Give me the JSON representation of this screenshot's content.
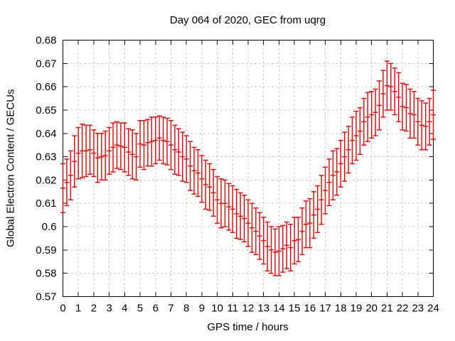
{
  "window": {
    "background": "#ffffff"
  },
  "chart_data": {
    "type": "scatter",
    "subtype": "yerrorbars",
    "title": "Day 064 of 2020, GEC from uqrg",
    "xlabel": "GPS time / hours",
    "ylabel": "Global Electron Content / GECUs",
    "xlim": [
      0,
      24
    ],
    "ylim": [
      0.57,
      0.68
    ],
    "grid": true,
    "legend_position": "none",
    "x_ticks": [
      0,
      1,
      2,
      3,
      4,
      5,
      6,
      7,
      8,
      9,
      10,
      11,
      12,
      13,
      14,
      15,
      16,
      17,
      18,
      19,
      20,
      21,
      22,
      23,
      24
    ],
    "x_tick_labels": [
      "0",
      "1",
      "2",
      "3",
      "4",
      "5",
      "6",
      "7",
      "8",
      "9",
      "10",
      "11",
      "12",
      "13",
      "14",
      "15",
      "16",
      "17",
      "18",
      "19",
      "20",
      "21",
      "22",
      "23",
      "24"
    ],
    "y_ticks": [
      0.57,
      0.58,
      0.59,
      0.6,
      0.61,
      0.62,
      0.63,
      0.64,
      0.65,
      0.66,
      0.67,
      0.68
    ],
    "y_tick_labels": [
      "0.57",
      "0.58",
      "0.59",
      "0.6",
      "0.61",
      "0.62",
      "0.63",
      "0.64",
      "0.65",
      "0.66",
      "0.67",
      "0.68"
    ],
    "series": [
      {
        "name": "GEC",
        "color": "#e60000",
        "marker": "plus-with-error-caps",
        "x": [
          0,
          0.25,
          0.5,
          0.75,
          1,
          1.25,
          1.5,
          1.75,
          2,
          2.25,
          2.5,
          2.75,
          3,
          3.25,
          3.5,
          3.75,
          4,
          4.25,
          4.5,
          4.75,
          5,
          5.25,
          5.5,
          5.75,
          6,
          6.25,
          6.5,
          6.75,
          7,
          7.25,
          7.5,
          7.75,
          8,
          8.25,
          8.5,
          8.75,
          9,
          9.25,
          9.5,
          9.75,
          10,
          10.25,
          10.5,
          10.75,
          11,
          11.25,
          11.5,
          11.75,
          12,
          12.25,
          12.5,
          12.75,
          13,
          13.25,
          13.5,
          13.75,
          14,
          14.25,
          14.5,
          14.75,
          15,
          15.25,
          15.5,
          15.75,
          16,
          16.25,
          16.5,
          16.75,
          17,
          17.25,
          17.5,
          17.75,
          18,
          18.25,
          18.5,
          18.75,
          19,
          19.25,
          19.5,
          19.75,
          20,
          20.25,
          20.5,
          20.75,
          21,
          21.25,
          21.5,
          21.75,
          22,
          22.25,
          22.5,
          22.75,
          23,
          23.25,
          23.5,
          23.75,
          24
        ],
        "y": [
          0.6165,
          0.619,
          0.622,
          0.628,
          0.6315,
          0.6325,
          0.6325,
          0.633,
          0.6315,
          0.6295,
          0.63,
          0.6305,
          0.6325,
          0.634,
          0.635,
          0.6345,
          0.634,
          0.632,
          0.631,
          0.63,
          0.6355,
          0.635,
          0.636,
          0.6365,
          0.637,
          0.638,
          0.637,
          0.6365,
          0.635,
          0.633,
          0.632,
          0.63,
          0.629,
          0.626,
          0.624,
          0.623,
          0.6205,
          0.618,
          0.617,
          0.6145,
          0.6115,
          0.61,
          0.61,
          0.6085,
          0.6075,
          0.6055,
          0.6045,
          0.6035,
          0.6015,
          0.5995,
          0.598,
          0.596,
          0.594,
          0.5915,
          0.59,
          0.589,
          0.5895,
          0.5905,
          0.592,
          0.591,
          0.594,
          0.5945,
          0.598,
          0.601,
          0.6015,
          0.605,
          0.6075,
          0.6115,
          0.6155,
          0.619,
          0.622,
          0.6235,
          0.627,
          0.63,
          0.633,
          0.637,
          0.639,
          0.641,
          0.645,
          0.647,
          0.648,
          0.649,
          0.652,
          0.657,
          0.6605,
          0.66,
          0.658,
          0.6555,
          0.6515,
          0.651,
          0.6485,
          0.648,
          0.645,
          0.6435,
          0.643,
          0.645,
          0.648
        ],
        "yerr": [
          0.0105,
          0.01,
          0.0105,
          0.011,
          0.011,
          0.0115,
          0.011,
          0.0105,
          0.01,
          0.0105,
          0.01,
          0.0105,
          0.01,
          0.0105,
          0.01,
          0.01,
          0.0105,
          0.01,
          0.0105,
          0.01,
          0.01,
          0.0105,
          0.01,
          0.0105,
          0.01,
          0.0095,
          0.01,
          0.01,
          0.0105,
          0.0105,
          0.01,
          0.0105,
          0.01,
          0.0105,
          0.01,
          0.01,
          0.01,
          0.0105,
          0.01,
          0.01,
          0.01,
          0.0105,
          0.01,
          0.01,
          0.01,
          0.0105,
          0.01,
          0.01,
          0.01,
          0.0105,
          0.01,
          0.01,
          0.01,
          0.0105,
          0.01,
          0.01,
          0.0105,
          0.01,
          0.01,
          0.01,
          0.01,
          0.0095,
          0.01,
          0.01,
          0.0105,
          0.01,
          0.01,
          0.0105,
          0.01,
          0.01,
          0.0105,
          0.01,
          0.01,
          0.0105,
          0.01,
          0.01,
          0.0105,
          0.01,
          0.01,
          0.0105,
          0.01,
          0.01,
          0.0105,
          0.01,
          0.0105,
          0.01,
          0.01,
          0.0105,
          0.01,
          0.01,
          0.0105,
          0.01,
          0.01,
          0.0105,
          0.01,
          0.01,
          0.0105
        ]
      }
    ],
    "colors": {
      "background": "#ffffff",
      "axis": "#000000",
      "grid": "#b3b3b3",
      "series": "#e60000",
      "text": "#000000"
    }
  }
}
